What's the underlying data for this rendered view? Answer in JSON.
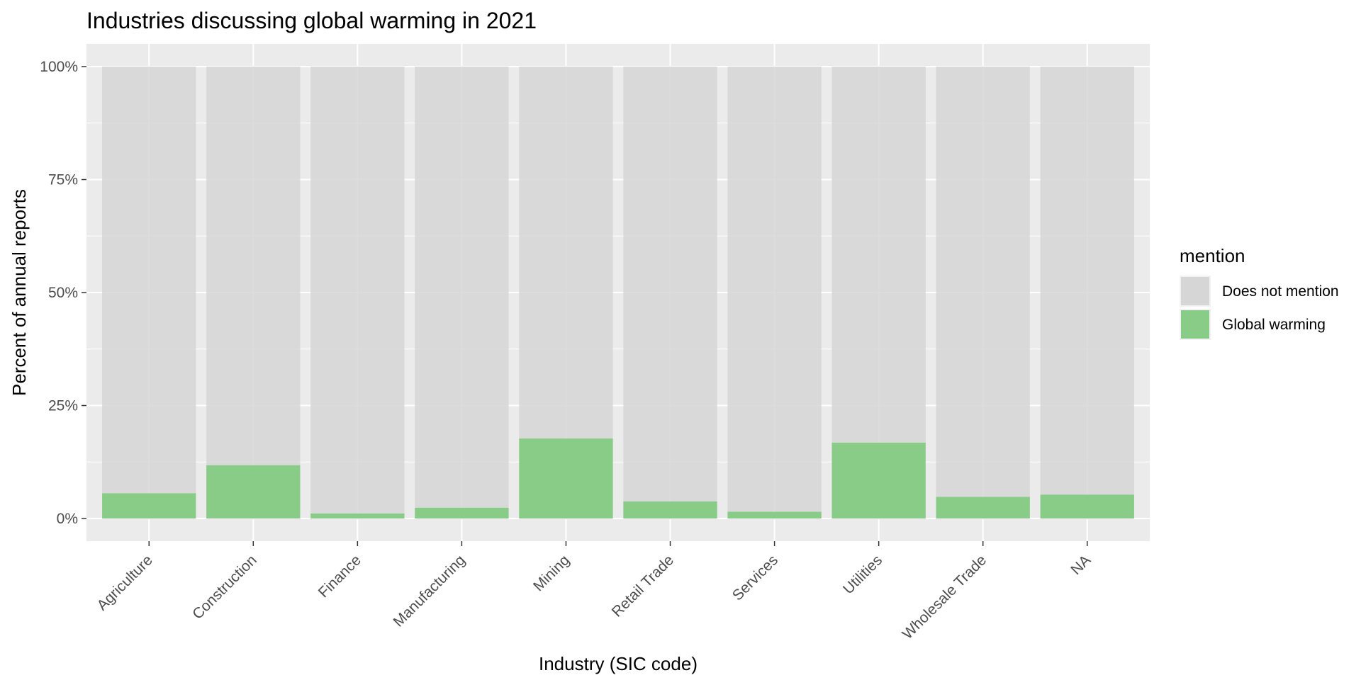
{
  "chart_data": {
    "type": "bar",
    "stacked": true,
    "title": "Industries discussing global warming in 2021",
    "xlabel": "Industry (SIC code)",
    "ylabel": "Percent of annual reports",
    "categories": [
      "Agriculture",
      "Construction",
      "Finance",
      "Manufacturing",
      "Mining",
      "Retail Trade",
      "Services",
      "Utilities",
      "Wholesale Trade",
      "NA"
    ],
    "series": [
      {
        "name": "Does not mention",
        "color": "#d6d6d6",
        "values": [
          94.4,
          88.2,
          98.9,
          97.6,
          82.3,
          96.2,
          98.5,
          83.2,
          95.2,
          94.7
        ]
      },
      {
        "name": "Global warming",
        "color": "#88cc88",
        "values": [
          5.6,
          11.8,
          1.1,
          2.4,
          17.7,
          3.8,
          1.5,
          16.8,
          4.8,
          5.3
        ]
      }
    ],
    "yticks": [
      0,
      25,
      50,
      75,
      100
    ],
    "ytick_labels": [
      "0%",
      "25%",
      "50%",
      "75%",
      "100%"
    ],
    "ylim": [
      0,
      100
    ],
    "legend": {
      "title": "mention",
      "position": "right"
    },
    "grid": true,
    "panel_background": "#ebebeb"
  }
}
